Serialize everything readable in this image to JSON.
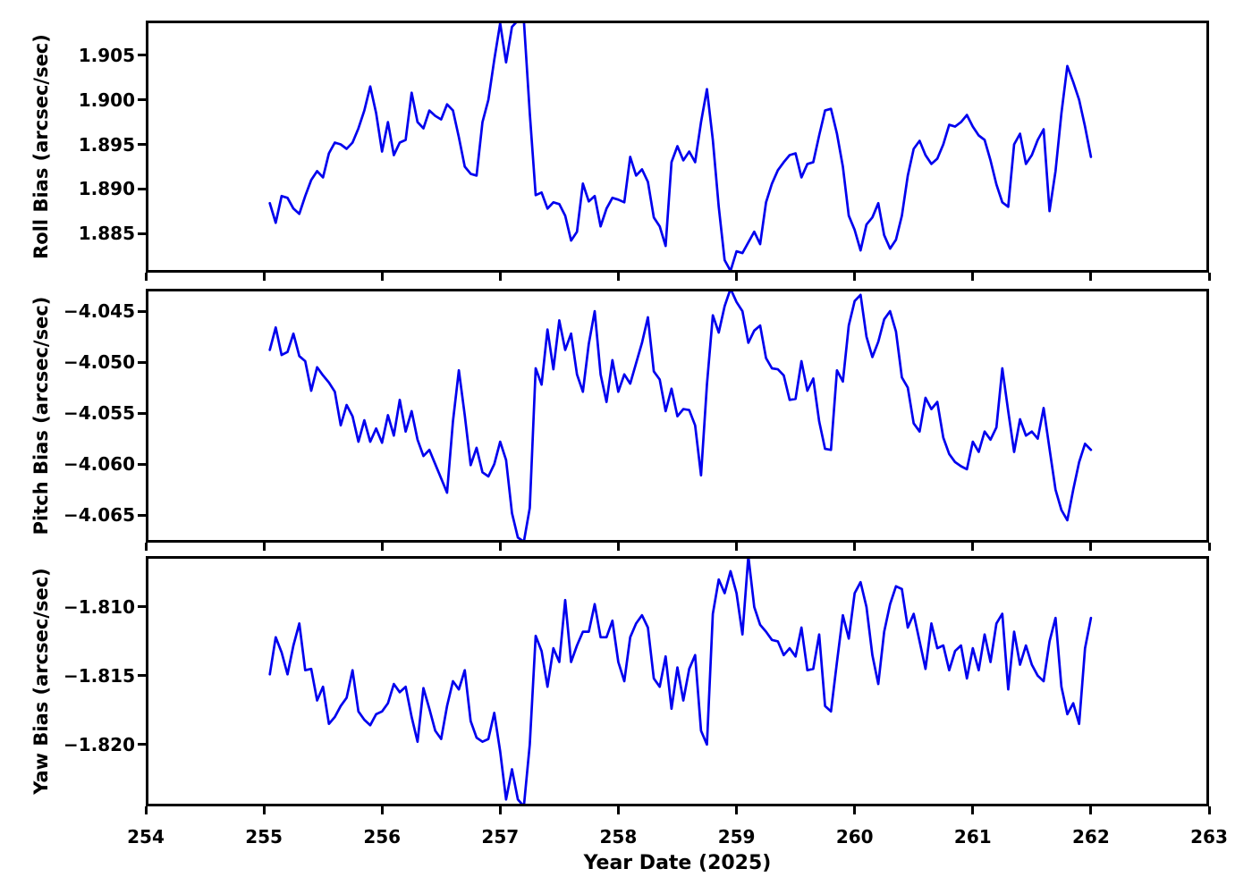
{
  "figure": {
    "background": "#ffffff",
    "axis_color": "#000000",
    "line_color": "#0000ee"
  },
  "chart_data": {
    "type": "line",
    "title": "",
    "xlabel": "Year Date (2025)",
    "xlim": [
      254,
      263
    ],
    "xticks": [
      254,
      255,
      256,
      257,
      258,
      259,
      260,
      261,
      262,
      263
    ],
    "xtick_labels": [
      "254",
      "255",
      "256",
      "257",
      "258",
      "259",
      "260",
      "261",
      "262",
      "263"
    ],
    "grid": false,
    "legend": "none",
    "line_color": "#0000ee",
    "x": [
      255.05,
      255.1,
      255.15,
      255.2,
      255.25,
      255.3,
      255.35,
      255.4,
      255.45,
      255.5,
      255.55,
      255.6,
      255.65,
      255.7,
      255.75,
      255.8,
      255.85,
      255.9,
      255.95,
      256.0,
      256.05,
      256.1,
      256.15,
      256.2,
      256.25,
      256.3,
      256.35,
      256.4,
      256.45,
      256.5,
      256.55,
      256.6,
      256.65,
      256.7,
      256.75,
      256.8,
      256.85,
      256.9,
      256.95,
      257.0,
      257.05,
      257.1,
      257.15,
      257.2,
      257.25,
      257.3,
      257.35,
      257.4,
      257.45,
      257.5,
      257.55,
      257.6,
      257.65,
      257.7,
      257.75,
      257.8,
      257.85,
      257.9,
      257.95,
      258.0,
      258.05,
      258.1,
      258.15,
      258.2,
      258.25,
      258.3,
      258.35,
      258.4,
      258.45,
      258.5,
      258.55,
      258.6,
      258.65,
      258.7,
      258.75,
      258.8,
      258.85,
      258.9,
      258.95,
      259.0,
      259.05,
      259.1,
      259.15,
      259.2,
      259.25,
      259.3,
      259.35,
      259.4,
      259.45,
      259.5,
      259.55,
      259.6,
      259.65,
      259.7,
      259.75,
      259.8,
      259.85,
      259.9,
      259.95,
      260.0,
      260.05,
      260.1,
      260.15,
      260.2,
      260.25,
      260.3,
      260.35,
      260.4,
      260.45,
      260.5,
      260.55,
      260.6,
      260.65,
      260.7,
      260.75,
      260.8,
      260.85,
      260.9,
      260.95,
      261.0,
      261.05,
      261.1,
      261.15,
      261.2,
      261.25,
      261.3,
      261.35,
      261.4,
      261.45,
      261.5,
      261.55,
      261.6,
      261.65,
      261.7,
      261.75,
      261.8,
      261.85,
      261.9,
      261.95,
      262.0
    ],
    "subplots": [
      {
        "name": "roll-bias",
        "ylabel": "Roll Bias (arcsec/sec)",
        "ylim": [
          1.8806,
          1.9089
        ],
        "yticks": [
          1.885,
          1.89,
          1.895,
          1.9,
          1.905
        ],
        "ytick_labels": [
          "1.885",
          "1.890",
          "1.895",
          "1.900",
          "1.905"
        ],
        "values": [
          1.8884,
          1.8862,
          1.8892,
          1.889,
          1.8878,
          1.8872,
          1.8892,
          1.891,
          1.892,
          1.8913,
          1.894,
          1.8952,
          1.895,
          1.8945,
          1.8952,
          1.8968,
          1.8988,
          1.9015,
          1.8985,
          1.8942,
          1.8975,
          1.8938,
          1.8952,
          1.8955,
          1.9008,
          1.8975,
          1.8968,
          1.8988,
          1.8982,
          1.8978,
          1.8995,
          1.8988,
          1.8958,
          1.8925,
          1.8917,
          1.8915,
          1.8975,
          1.9,
          1.9045,
          1.9086,
          1.9042,
          1.9082,
          1.9089,
          1.9089,
          1.8985,
          1.8893,
          1.8896,
          1.8878,
          1.8885,
          1.8883,
          1.887,
          1.8842,
          1.8852,
          1.8906,
          1.8886,
          1.8892,
          1.8858,
          1.8878,
          1.889,
          1.8888,
          1.8885,
          1.8936,
          1.8915,
          1.8922,
          1.8908,
          1.8868,
          1.8858,
          1.8836,
          1.893,
          1.8948,
          1.8932,
          1.8942,
          1.893,
          1.8975,
          1.9012,
          1.8955,
          1.888,
          1.882,
          1.8808,
          1.883,
          1.8828,
          1.884,
          1.8852,
          1.8838,
          1.8885,
          1.8906,
          1.8921,
          1.893,
          1.8938,
          1.894,
          1.8913,
          1.8928,
          1.893,
          1.896,
          1.8988,
          1.899,
          1.8962,
          1.8925,
          1.887,
          1.8854,
          1.8831,
          1.886,
          1.8868,
          1.8884,
          1.8848,
          1.8833,
          1.8843,
          1.887,
          1.8915,
          1.8945,
          1.8954,
          1.8938,
          1.8928,
          1.8934,
          1.895,
          1.8972,
          1.897,
          1.8975,
          1.8983,
          1.897,
          1.896,
          1.8955,
          1.8932,
          1.8905,
          1.8885,
          1.888,
          1.895,
          1.8962,
          1.8928,
          1.8938,
          1.8955,
          1.8967,
          1.8875,
          1.892,
          1.8985,
          1.9038,
          1.902,
          1.9,
          1.897,
          1.8936
        ]
      },
      {
        "name": "pitch-bias",
        "ylabel": "Pitch Bias (arcsec/sec)",
        "ylim": [
          -4.0677,
          -4.0428
        ],
        "yticks": [
          -4.065,
          -4.06,
          -4.055,
          -4.05,
          -4.045
        ],
        "ytick_labels": [
          "−4.065",
          "−4.060",
          "−4.055",
          "−4.050",
          "−4.045"
        ],
        "values": [
          -4.0488,
          -4.0466,
          -4.0493,
          -4.049,
          -4.0472,
          -4.0494,
          -4.0499,
          -4.0528,
          -4.0505,
          -4.0513,
          -4.052,
          -4.0529,
          -4.0562,
          -4.0542,
          -4.0553,
          -4.0578,
          -4.0557,
          -4.0578,
          -4.0565,
          -4.0579,
          -4.0552,
          -4.0572,
          -4.0537,
          -4.0568,
          -4.0548,
          -4.0576,
          -4.0592,
          -4.0586,
          -4.06,
          -4.0614,
          -4.0628,
          -4.0558,
          -4.0508,
          -4.0552,
          -4.0601,
          -4.0584,
          -4.0608,
          -4.0612,
          -4.06,
          -4.0578,
          -4.0596,
          -4.0648,
          -4.0672,
          -4.0676,
          -4.0643,
          -4.0506,
          -4.0522,
          -4.0468,
          -4.0507,
          -4.0459,
          -4.0488,
          -4.0472,
          -4.0512,
          -4.0529,
          -4.0482,
          -4.045,
          -4.0512,
          -4.0539,
          -4.0498,
          -4.0529,
          -4.0512,
          -4.0521,
          -4.0501,
          -4.0481,
          -4.0456,
          -4.0509,
          -4.0517,
          -4.0548,
          -4.0526,
          -4.0553,
          -4.0546,
          -4.0547,
          -4.0562,
          -4.0611,
          -4.0522,
          -4.0454,
          -4.0471,
          -4.0445,
          -4.0428,
          -4.0441,
          -4.045,
          -4.0481,
          -4.0469,
          -4.0464,
          -4.0496,
          -4.0506,
          -4.0507,
          -4.0513,
          -4.0537,
          -4.0536,
          -4.0499,
          -4.0528,
          -4.0516,
          -4.0558,
          -4.0585,
          -4.0586,
          -4.0508,
          -4.0519,
          -4.0464,
          -4.044,
          -4.0434,
          -4.0475,
          -4.0495,
          -4.048,
          -4.0458,
          -4.045,
          -4.047,
          -4.0515,
          -4.0525,
          -4.056,
          -4.0568,
          -4.0535,
          -4.0546,
          -4.0539,
          -4.0574,
          -4.059,
          -4.0598,
          -4.0602,
          -4.0605,
          -4.0578,
          -4.0588,
          -4.0568,
          -4.0576,
          -4.0564,
          -4.0506,
          -4.0548,
          -4.0588,
          -4.0556,
          -4.0572,
          -4.0568,
          -4.0575,
          -4.0545,
          -4.0585,
          -4.0625,
          -4.0645,
          -4.0655,
          -4.0625,
          -4.0598,
          -4.058,
          -4.0586
        ]
      },
      {
        "name": "yaw-bias",
        "ylabel": "Yaw Bias (arcsec/sec)",
        "ylim": [
          -1.8245,
          -1.8063
        ],
        "yticks": [
          -1.82,
          -1.815,
          -1.81
        ],
        "ytick_labels": [
          "−1.820",
          "−1.815",
          "−1.810"
        ],
        "values": [
          -1.8149,
          -1.8122,
          -1.8133,
          -1.8149,
          -1.8128,
          -1.8112,
          -1.8146,
          -1.8145,
          -1.8168,
          -1.8158,
          -1.8185,
          -1.818,
          -1.8172,
          -1.8166,
          -1.8146,
          -1.8176,
          -1.8182,
          -1.8186,
          -1.8178,
          -1.8176,
          -1.817,
          -1.8156,
          -1.8162,
          -1.8158,
          -1.818,
          -1.8198,
          -1.8159,
          -1.8174,
          -1.819,
          -1.8196,
          -1.8172,
          -1.8154,
          -1.816,
          -1.8146,
          -1.8183,
          -1.8195,
          -1.8198,
          -1.8196,
          -1.8177,
          -1.8205,
          -1.824,
          -1.8218,
          -1.824,
          -1.8245,
          -1.82,
          -1.8121,
          -1.8132,
          -1.8158,
          -1.813,
          -1.814,
          -1.8095,
          -1.814,
          -1.8128,
          -1.8118,
          -1.8118,
          -1.8098,
          -1.8122,
          -1.8122,
          -1.811,
          -1.814,
          -1.8154,
          -1.8122,
          -1.8112,
          -1.8106,
          -1.8115,
          -1.8152,
          -1.8158,
          -1.8136,
          -1.8174,
          -1.8144,
          -1.8168,
          -1.8145,
          -1.8135,
          -1.819,
          -1.82,
          -1.8105,
          -1.808,
          -1.809,
          -1.8074,
          -1.809,
          -1.812,
          -1.8063,
          -1.81,
          -1.8113,
          -1.8118,
          -1.8124,
          -1.8125,
          -1.8135,
          -1.813,
          -1.8136,
          -1.8115,
          -1.8146,
          -1.8145,
          -1.812,
          -1.8172,
          -1.8176,
          -1.814,
          -1.8106,
          -1.8123,
          -1.809,
          -1.8082,
          -1.81,
          -1.8135,
          -1.8156,
          -1.8118,
          -1.8098,
          -1.8085,
          -1.8087,
          -1.8115,
          -1.8105,
          -1.8125,
          -1.8145,
          -1.8112,
          -1.813,
          -1.8128,
          -1.8146,
          -1.8132,
          -1.8128,
          -1.8152,
          -1.813,
          -1.8146,
          -1.812,
          -1.814,
          -1.8112,
          -1.8105,
          -1.816,
          -1.8118,
          -1.8142,
          -1.8128,
          -1.8142,
          -1.815,
          -1.8154,
          -1.8125,
          -1.8108,
          -1.8158,
          -1.8178,
          -1.817,
          -1.8185,
          -1.813,
          -1.8108
        ]
      }
    ]
  }
}
